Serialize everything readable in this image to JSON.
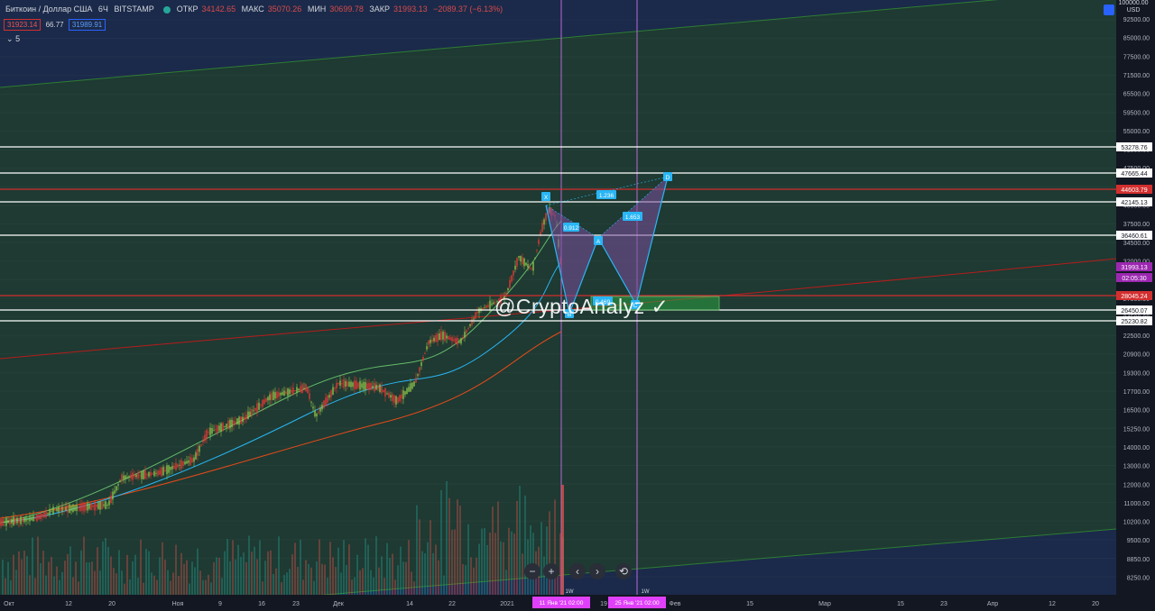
{
  "legend": {
    "symbol": "Биткоин / Доллар США",
    "interval": "6Ч",
    "exchange": "BITSTAMP",
    "open_label": "ОТКР",
    "open_value": "34142.65",
    "high_label": "МАКС",
    "high_value": "35070.26",
    "low_label": "МИН",
    "low_value": "30699.78",
    "close_label": "ЗАКР",
    "close_value": "31993.13",
    "change": "−2089.37 (−6.13%)"
  },
  "indicator_row": {
    "bid": "31923.14",
    "spread": "66.77",
    "ask": "31989.91"
  },
  "collapse_label": "5",
  "price_scale": {
    "top_values": [
      "100000.00",
      "USD"
    ],
    "ticks": [
      "92500.00",
      "85000.00",
      "77500.00",
      "71500.00",
      "65500.00",
      "59500.00",
      "55000.00",
      "51500.00",
      "47500.00",
      "44000.00",
      "40500.00",
      "37500.00",
      "34500.00",
      "32000.00",
      "29500.00",
      "27000.00",
      "24500.00",
      "22500.00",
      "20900.00",
      "19300.00",
      "17700.00",
      "16500.00",
      "15250.00",
      "14000.00",
      "13000.00",
      "12000.00",
      "11000.00",
      "10200.00",
      "9500.00",
      "8850.00",
      "8250.00"
    ],
    "level_tags": [
      {
        "text": "53278.76",
        "kind": "white"
      },
      {
        "text": "47665.44",
        "kind": "white"
      },
      {
        "text": "44603.79",
        "kind": "red"
      },
      {
        "text": "42145.13",
        "kind": "white"
      },
      {
        "text": "36460.61",
        "kind": "white"
      },
      {
        "text": "31993.13",
        "kind": "purple"
      },
      {
        "text": "02:05:30",
        "kind": "purple"
      },
      {
        "text": "28045.24",
        "kind": "red"
      },
      {
        "text": "26450.07",
        "kind": "white"
      },
      {
        "text": "25230.82",
        "kind": "white"
      }
    ]
  },
  "time_scale": {
    "labels": [
      "Окт",
      "12",
      "20",
      "Ноя",
      "9",
      "16",
      "23",
      "Дек",
      "14",
      "22",
      "2021",
      "19",
      "Фев",
      "15",
      "Мар",
      "15",
      "23",
      "Апр",
      "12",
      "20"
    ],
    "markers": [
      "11 Янв '21   02:00",
      "25 Янв '21   02:00"
    ]
  },
  "vertical_tags": [
    "1W",
    "1W"
  ],
  "pattern_labels": [
    "X",
    "0.912",
    "1.236",
    "A",
    "1.653",
    "B",
    "0.469",
    "C",
    "D"
  ],
  "watermark": "@CryptoAnalyz ✓",
  "nav_buttons": [
    "−",
    "+",
    "‹",
    "›",
    "⟲"
  ],
  "colors": {
    "background": "#131722",
    "channel_fill": "#1e3a32",
    "candle_up": "#8bc34a",
    "candle_down": "#e53935",
    "pattern_line": "#29b6f6",
    "pattern_fill": "#7b4ea0",
    "level_white": "#ffffff",
    "level_red": "#d32f2f",
    "vline": "#b86bd6",
    "marker_bg": "#e040fb"
  }
}
